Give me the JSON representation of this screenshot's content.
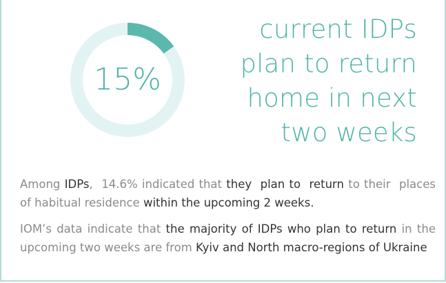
{
  "donut": {
    "value": 15,
    "label": "15%",
    "color": "#5bb8ae",
    "track_color": "#e2f3f3"
  },
  "heading": [
    "current IDPs",
    "plan to return",
    "home in next",
    "two weeks"
  ],
  "paragraphs": [
    [
      {
        "text": "Among "
      },
      {
        "text": "IDPs",
        "strong": true
      },
      {
        "text": ",  14.6% indicated that "
      },
      {
        "text": "they  plan to  return",
        "strong": true
      },
      {
        "text": " to their  places of habitual residence "
      },
      {
        "text": "within the upcoming 2 weeks.",
        "strong": true
      }
    ],
    [
      {
        "text": "IOM’s data indicate that "
      },
      {
        "text": "the majority of IDPs who plan to return",
        "strong": true
      },
      {
        "text": " in the upcoming two weeks are from "
      },
      {
        "text": "Kyiv and North macro-regions of Ukraine",
        "strong": true
      }
    ]
  ]
}
